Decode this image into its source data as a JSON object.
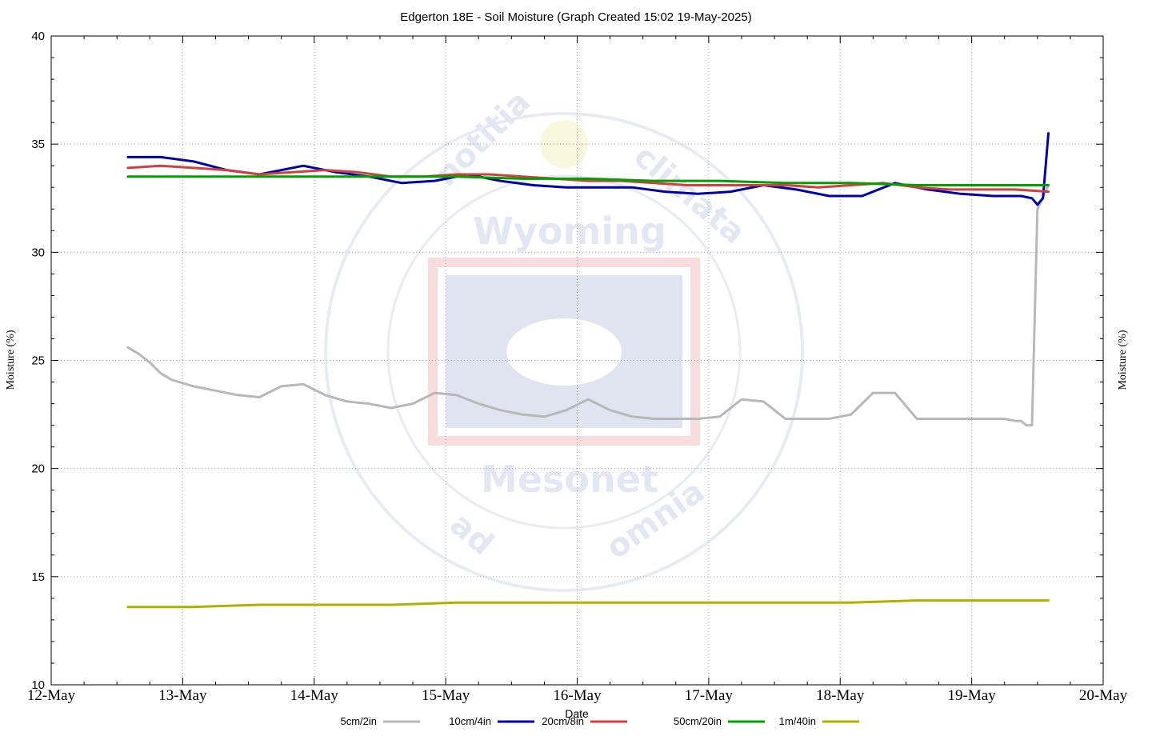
{
  "chart_data": {
    "type": "line",
    "title": "Edgerton 18E - Soil Moisture (Graph Created 15:02 19-May-2025)",
    "xlabel": "Date",
    "ylabel": "Moisture (%)",
    "y2label": "Moisture (%)",
    "ylim": [
      10,
      40
    ],
    "yticks": [
      "10",
      "15",
      "20",
      "25",
      "30",
      "35",
      "40"
    ],
    "xlim": [
      "2025-05-12T00:00",
      "2025-05-20T00:00"
    ],
    "xticks": [
      "12-May",
      "13-May",
      "14-May",
      "15-May",
      "16-May",
      "17-May",
      "18-May",
      "19-May",
      "20-May"
    ],
    "grid": true,
    "legend_position": "bottom",
    "watermark": {
      "words": [
        "notitia",
        "climata",
        "Wyoming",
        "Mesonet",
        "ad",
        "omnia"
      ]
    },
    "series": [
      {
        "name": "5cm/2in",
        "color": "#b8b8b8",
        "x": [
          "2025-05-12T14:00",
          "2025-05-12T16:00",
          "2025-05-12T18:00",
          "2025-05-12T20:00",
          "2025-05-12T22:00",
          "2025-05-13T02:00",
          "2025-05-13T06:00",
          "2025-05-13T10:00",
          "2025-05-13T14:00",
          "2025-05-13T18:00",
          "2025-05-13T22:00",
          "2025-05-14T02:00",
          "2025-05-14T06:00",
          "2025-05-14T10:00",
          "2025-05-14T14:00",
          "2025-05-14T18:00",
          "2025-05-14T22:00",
          "2025-05-15T02:00",
          "2025-05-15T06:00",
          "2025-05-15T10:00",
          "2025-05-15T14:00",
          "2025-05-15T18:00",
          "2025-05-15T22:00",
          "2025-05-16T02:00",
          "2025-05-16T06:00",
          "2025-05-16T10:00",
          "2025-05-16T14:00",
          "2025-05-16T18:00",
          "2025-05-16T22:00",
          "2025-05-17T02:00",
          "2025-05-17T06:00",
          "2025-05-17T10:00",
          "2025-05-17T14:00",
          "2025-05-17T18:00",
          "2025-05-17T22:00",
          "2025-05-18T02:00",
          "2025-05-18T06:00",
          "2025-05-18T10:00",
          "2025-05-18T14:00",
          "2025-05-18T18:00",
          "2025-05-18T22:00",
          "2025-05-19T02:00",
          "2025-05-19T06:00",
          "2025-05-19T08:00",
          "2025-05-19T09:00",
          "2025-05-19T10:00",
          "2025-05-19T11:00",
          "2025-05-19T12:00",
          "2025-05-19T14:00"
        ],
        "values": [
          25.6,
          25.3,
          24.9,
          24.4,
          24.1,
          23.8,
          23.6,
          23.4,
          23.3,
          23.8,
          23.9,
          23.4,
          23.1,
          23.0,
          22.8,
          23.0,
          23.5,
          23.4,
          23.0,
          22.7,
          22.5,
          22.4,
          22.7,
          23.2,
          22.7,
          22.4,
          22.3,
          22.3,
          22.3,
          22.4,
          23.2,
          23.1,
          22.3,
          22.3,
          22.3,
          22.5,
          23.5,
          23.5,
          22.3,
          22.3,
          22.3,
          22.3,
          22.3,
          22.2,
          22.2,
          22.0,
          22.0,
          32.0,
          33.1
        ]
      },
      {
        "name": "10cm/4in",
        "color": "#0000a8",
        "x": [
          "2025-05-12T14:00",
          "2025-05-12T20:00",
          "2025-05-13T02:00",
          "2025-05-13T08:00",
          "2025-05-13T14:00",
          "2025-05-13T18:00",
          "2025-05-13T22:00",
          "2025-05-14T04:00",
          "2025-05-14T10:00",
          "2025-05-14T16:00",
          "2025-05-14T22:00",
          "2025-05-15T04:00",
          "2025-05-15T10:00",
          "2025-05-15T16:00",
          "2025-05-15T22:00",
          "2025-05-16T04:00",
          "2025-05-16T10:00",
          "2025-05-16T16:00",
          "2025-05-16T22:00",
          "2025-05-17T04:00",
          "2025-05-17T10:00",
          "2025-05-17T16:00",
          "2025-05-17T22:00",
          "2025-05-18T04:00",
          "2025-05-18T10:00",
          "2025-05-18T16:00",
          "2025-05-18T22:00",
          "2025-05-19T04:00",
          "2025-05-19T09:00",
          "2025-05-19T11:00",
          "2025-05-19T12:00",
          "2025-05-19T13:00",
          "2025-05-19T14:00"
        ],
        "values": [
          34.4,
          34.4,
          34.2,
          33.8,
          33.6,
          33.8,
          34.0,
          33.7,
          33.5,
          33.2,
          33.3,
          33.6,
          33.3,
          33.1,
          33.0,
          33.0,
          33.0,
          32.8,
          32.7,
          32.8,
          33.1,
          32.9,
          32.6,
          32.6,
          33.2,
          32.9,
          32.7,
          32.6,
          32.6,
          32.5,
          32.2,
          32.5,
          35.5
        ]
      },
      {
        "name": "20cm/8in",
        "color": "#d04040",
        "x": [
          "2025-05-12T14:00",
          "2025-05-12T20:00",
          "2025-05-13T02:00",
          "2025-05-13T08:00",
          "2025-05-13T14:00",
          "2025-05-13T20:00",
          "2025-05-14T02:00",
          "2025-05-14T08:00",
          "2025-05-14T14:00",
          "2025-05-14T20:00",
          "2025-05-15T02:00",
          "2025-05-15T08:00",
          "2025-05-15T14:00",
          "2025-05-15T20:00",
          "2025-05-16T02:00",
          "2025-05-16T08:00",
          "2025-05-16T14:00",
          "2025-05-16T20:00",
          "2025-05-17T02:00",
          "2025-05-17T08:00",
          "2025-05-17T14:00",
          "2025-05-17T20:00",
          "2025-05-18T02:00",
          "2025-05-18T08:00",
          "2025-05-18T14:00",
          "2025-05-18T20:00",
          "2025-05-19T02:00",
          "2025-05-19T08:00",
          "2025-05-19T14:00"
        ],
        "values": [
          33.9,
          34.0,
          33.9,
          33.8,
          33.6,
          33.7,
          33.8,
          33.7,
          33.5,
          33.5,
          33.6,
          33.6,
          33.5,
          33.4,
          33.3,
          33.3,
          33.2,
          33.1,
          33.1,
          33.1,
          33.1,
          33.0,
          33.1,
          33.2,
          33.0,
          32.9,
          32.9,
          32.9,
          32.8
        ]
      },
      {
        "name": "50cm/20in",
        "color": "#00a000",
        "x": [
          "2025-05-12T14:00",
          "2025-05-13T02:00",
          "2025-05-13T14:00",
          "2025-05-14T02:00",
          "2025-05-14T14:00",
          "2025-05-15T02:00",
          "2025-05-15T14:00",
          "2025-05-16T02:00",
          "2025-05-16T14:00",
          "2025-05-17T02:00",
          "2025-05-17T14:00",
          "2025-05-18T02:00",
          "2025-05-18T14:00",
          "2025-05-19T02:00",
          "2025-05-19T14:00"
        ],
        "values": [
          33.5,
          33.5,
          33.5,
          33.5,
          33.5,
          33.5,
          33.4,
          33.4,
          33.3,
          33.3,
          33.2,
          33.2,
          33.1,
          33.1,
          33.1
        ]
      },
      {
        "name": "1m/40in",
        "color": "#b0b000",
        "x": [
          "2025-05-12T14:00",
          "2025-05-13T02:00",
          "2025-05-13T14:00",
          "2025-05-14T02:00",
          "2025-05-14T14:00",
          "2025-05-15T02:00",
          "2025-05-15T14:00",
          "2025-05-16T02:00",
          "2025-05-16T14:00",
          "2025-05-17T02:00",
          "2025-05-17T14:00",
          "2025-05-18T02:00",
          "2025-05-18T14:00",
          "2025-05-19T02:00",
          "2025-05-19T14:00"
        ],
        "values": [
          13.6,
          13.6,
          13.7,
          13.7,
          13.7,
          13.8,
          13.8,
          13.8,
          13.8,
          13.8,
          13.8,
          13.8,
          13.9,
          13.9,
          13.9
        ]
      }
    ]
  }
}
